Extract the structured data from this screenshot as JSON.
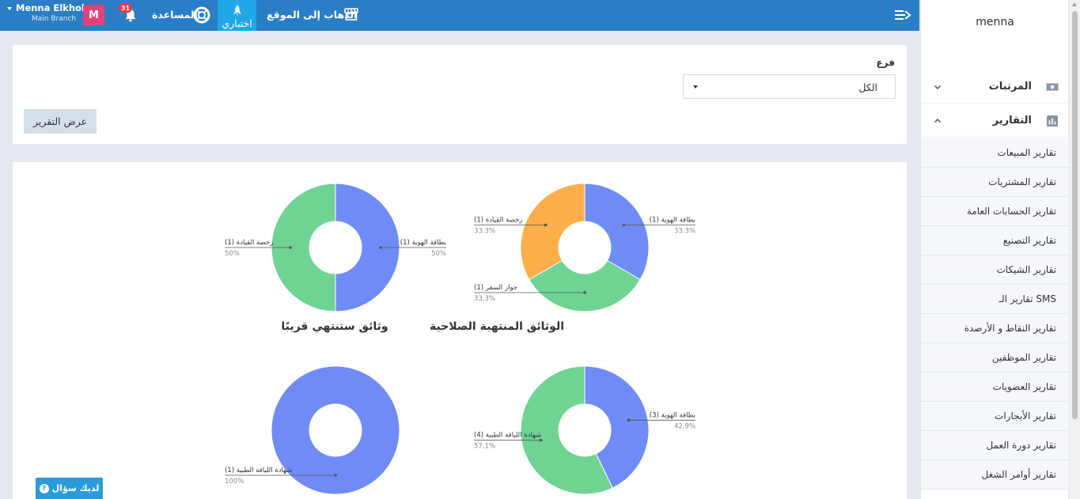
{
  "topbar": {
    "user_name": "Menna Elkholy",
    "branch": "Main Branch",
    "avatar_letter": "M",
    "notifications_count": "31",
    "help_label": "المساعدة",
    "test_label": "اختباري",
    "goto_site_label": "الذهاب إلى الموقع"
  },
  "sidebar": {
    "brand": "menna",
    "salaries_label": "المرتبات",
    "reports_label": "التقارير",
    "reports_items": [
      "تقارير المبيعات",
      "تقارير المشتريات",
      "تقارير الحسابات العامة",
      "تقارير التصنيع",
      "تقارير الشيكات",
      "تقارير الـ SMS",
      "تقارير النقاط و الأرصدة",
      "تقارير الموظفين",
      "تقارير العضويات",
      "تقارير الأيجارات",
      "تقارير دورة العمل",
      "تقارير أوامر الشغل"
    ]
  },
  "filter": {
    "branch_label": "فرع",
    "branch_value": "الكل",
    "show_report_button": "عرض التقرير"
  },
  "colors": {
    "blue": "#6f8bf5",
    "green": "#6fd393",
    "orange": "#fdae4b",
    "topbar": "#2a7ec6",
    "accent": "#1fa7e8"
  },
  "chart_data": [
    {
      "type": "pie",
      "title": "الوثائق المنتهية الصلاحية",
      "slices": [
        {
          "label": "بطاقة الهوية (1)",
          "value": 1,
          "percent": "33.3%",
          "color": "#6f8bf5"
        },
        {
          "label": "جواز السفر (1)",
          "value": 1,
          "percent": "33.3%",
          "color": "#6fd393"
        },
        {
          "label": "رخصة القيادة (1)",
          "value": 1,
          "percent": "33.3%",
          "color": "#fdae4b"
        }
      ]
    },
    {
      "type": "pie",
      "title": "وثائق ستنتهي قريبًا",
      "slices": [
        {
          "label": "بطاقة الهوية (1)",
          "value": 1,
          "percent": "50%",
          "color": "#6f8bf5"
        },
        {
          "label": "رخصة القيادة (1)",
          "value": 1,
          "percent": "50%",
          "color": "#6fd393"
        }
      ]
    },
    {
      "type": "pie",
      "title": "",
      "slices": [
        {
          "label": "بطاقة الهوية (3)",
          "value": 3,
          "percent": "42.9%",
          "color": "#6f8bf5"
        },
        {
          "label": "شهادة اللياقة الطبية (4)",
          "value": 4,
          "percent": "57.1%",
          "color": "#6fd393"
        }
      ]
    },
    {
      "type": "pie",
      "title": "",
      "slices": [
        {
          "label": "شهادة اللياقة الطبية (1)",
          "value": 1,
          "percent": "100%",
          "color": "#6f8bf5"
        }
      ]
    }
  ],
  "ask_button": "لديك سؤال"
}
